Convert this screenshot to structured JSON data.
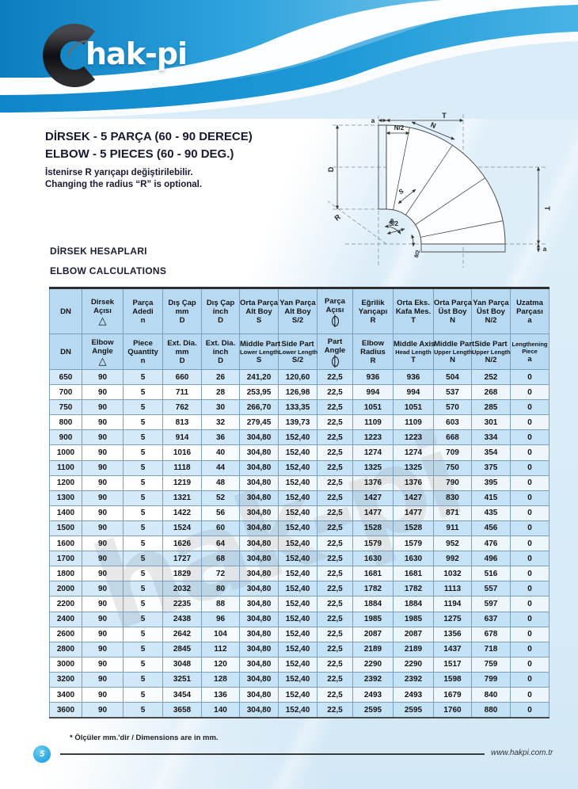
{
  "brand": {
    "logo_text": "hak-pi",
    "watermark": "hak-pi",
    "website": "www.hakpi.com.tr",
    "page_number": "5"
  },
  "titles": {
    "title_tr": "DİRSEK - 5 PARÇA (60 - 90 DERECE)",
    "title_en": "ELBOW - 5 PIECES (60 - 90 DEG.)",
    "note_tr": "İstenirse R yarıçapı değiştirilebilir.",
    "note_en": "Changing the radius “R” is optional."
  },
  "section": {
    "heading_tr": "DİRSEK HESAPLARI",
    "heading_en": "ELBOW CALCULATIONS"
  },
  "diagram": {
    "labels": {
      "a_top": "a",
      "n_half": "N/2",
      "t_top": "T",
      "n": "N",
      "d": "D",
      "r": "R",
      "s": "S",
      "s_half": "S/2",
      "t_right": "T",
      "a_bottom": "a",
      "theta": "θ",
      "theta_half": "θ/2"
    }
  },
  "table": {
    "symbols": {
      "triangle": "△",
      "theta": "θ"
    },
    "columns": [
      {
        "id": "dn",
        "tr": [
          "DN"
        ],
        "en": [
          "DN"
        ]
      },
      {
        "id": "elbow-angle",
        "tr": [
          "Dirsek",
          "Açısı"
        ],
        "en": [
          "Elbow",
          "Angle"
        ],
        "symbol": "triangle"
      },
      {
        "id": "piece-quantity",
        "tr": [
          "Parça",
          "Adedi",
          "n"
        ],
        "en": [
          "Piece",
          "Quantity",
          "n"
        ]
      },
      {
        "id": "ext-dia-mm",
        "tr": [
          "Dış Çap",
          "mm",
          "D"
        ],
        "en": [
          "Ext. Dia.",
          "mm",
          "D"
        ]
      },
      {
        "id": "ext-dia-inch",
        "tr": [
          "Dış Çap",
          "inch",
          "D"
        ],
        "en": [
          "Ext. Dia.",
          "inch",
          "D"
        ]
      },
      {
        "id": "middle-part-lower-length",
        "tr": [
          "Orta Parça",
          "Alt Boy",
          "S"
        ],
        "en": [
          "Middle Part",
          "Lower Length",
          "S"
        ],
        "en_small": [
          1
        ]
      },
      {
        "id": "side-part-lower-length",
        "tr": [
          "Yan Parça",
          "Alt Boy",
          "S/2"
        ],
        "en": [
          "Side Part",
          "Lower Length",
          "S/2"
        ],
        "en_small": [
          1
        ]
      },
      {
        "id": "part-angle",
        "tr": [
          "Parça",
          "Açısı"
        ],
        "en": [
          "Part",
          "Angle"
        ],
        "symbol": "theta"
      },
      {
        "id": "elbow-radius",
        "tr": [
          "Eğrilik",
          "Yarıçapı",
          "R"
        ],
        "en": [
          "Elbow",
          "Radius",
          "R"
        ]
      },
      {
        "id": "middle-axis-head-length",
        "tr": [
          "Orta Eks.",
          "Kafa Mes.",
          "T"
        ],
        "en": [
          "Middle Axis",
          "Head Length",
          "T"
        ],
        "en_small": [
          1
        ]
      },
      {
        "id": "middle-part-upper-length",
        "tr": [
          "Orta Parça",
          "Üst Boy",
          "N"
        ],
        "en": [
          "Middle Part",
          "Upper Length",
          "N"
        ],
        "en_small": [
          1
        ]
      },
      {
        "id": "side-part-upper-length",
        "tr": [
          "Yan Parça",
          "Üst Boy",
          "N/2"
        ],
        "en": [
          "Side Part",
          "Upper Length",
          "N/2"
        ],
        "en_small": [
          1
        ]
      },
      {
        "id": "lengthening-piece",
        "tr": [
          "Uzatma",
          "Parçası",
          "a"
        ],
        "en": [
          "Lengthening",
          "Piece",
          "a"
        ],
        "en_small": [
          0,
          1
        ]
      }
    ],
    "rows": [
      [
        "650",
        "90",
        "5",
        "660",
        "26",
        "241,20",
        "120,60",
        "22,5",
        "936",
        "936",
        "504",
        "252",
        "0"
      ],
      [
        "700",
        "90",
        "5",
        "711",
        "28",
        "253,95",
        "126,98",
        "22,5",
        "994",
        "994",
        "537",
        "268",
        "0"
      ],
      [
        "750",
        "90",
        "5",
        "762",
        "30",
        "266,70",
        "133,35",
        "22,5",
        "1051",
        "1051",
        "570",
        "285",
        "0"
      ],
      [
        "800",
        "90",
        "5",
        "813",
        "32",
        "279,45",
        "139,73",
        "22,5",
        "1109",
        "1109",
        "603",
        "301",
        "0"
      ],
      [
        "900",
        "90",
        "5",
        "914",
        "36",
        "304,80",
        "152,40",
        "22,5",
        "1223",
        "1223",
        "668",
        "334",
        "0"
      ],
      [
        "1000",
        "90",
        "5",
        "1016",
        "40",
        "304,80",
        "152,40",
        "22,5",
        "1274",
        "1274",
        "709",
        "354",
        "0"
      ],
      [
        "1100",
        "90",
        "5",
        "1118",
        "44",
        "304,80",
        "152,40",
        "22,5",
        "1325",
        "1325",
        "750",
        "375",
        "0"
      ],
      [
        "1200",
        "90",
        "5",
        "1219",
        "48",
        "304,80",
        "152,40",
        "22,5",
        "1376",
        "1376",
        "790",
        "395",
        "0"
      ],
      [
        "1300",
        "90",
        "5",
        "1321",
        "52",
        "304,80",
        "152,40",
        "22,5",
        "1427",
        "1427",
        "830",
        "415",
        "0"
      ],
      [
        "1400",
        "90",
        "5",
        "1422",
        "56",
        "304,80",
        "152,40",
        "22,5",
        "1477",
        "1477",
        "871",
        "435",
        "0"
      ],
      [
        "1500",
        "90",
        "5",
        "1524",
        "60",
        "304,80",
        "152,40",
        "22,5",
        "1528",
        "1528",
        "911",
        "456",
        "0"
      ],
      [
        "1600",
        "90",
        "5",
        "1626",
        "64",
        "304,80",
        "152,40",
        "22,5",
        "1579",
        "1579",
        "952",
        "476",
        "0"
      ],
      [
        "1700",
        "90",
        "5",
        "1727",
        "68",
        "304,80",
        "152,40",
        "22,5",
        "1630",
        "1630",
        "992",
        "496",
        "0"
      ],
      [
        "1800",
        "90",
        "5",
        "1829",
        "72",
        "304,80",
        "152,40",
        "22,5",
        "1681",
        "1681",
        "1032",
        "516",
        "0"
      ],
      [
        "2000",
        "90",
        "5",
        "2032",
        "80",
        "304,80",
        "152,40",
        "22,5",
        "1782",
        "1782",
        "1113",
        "557",
        "0"
      ],
      [
        "2200",
        "90",
        "5",
        "2235",
        "88",
        "304,80",
        "152,40",
        "22,5",
        "1884",
        "1884",
        "1194",
        "597",
        "0"
      ],
      [
        "2400",
        "90",
        "5",
        "2438",
        "96",
        "304,80",
        "152,40",
        "22,5",
        "1985",
        "1985",
        "1275",
        "637",
        "0"
      ],
      [
        "2600",
        "90",
        "5",
        "2642",
        "104",
        "304,80",
        "152,40",
        "22,5",
        "2087",
        "2087",
        "1356",
        "678",
        "0"
      ],
      [
        "2800",
        "90",
        "5",
        "2845",
        "112",
        "304,80",
        "152,40",
        "22,5",
        "2189",
        "2189",
        "1437",
        "718",
        "0"
      ],
      [
        "3000",
        "90",
        "5",
        "3048",
        "120",
        "304,80",
        "152,40",
        "22,5",
        "2290",
        "2290",
        "1517",
        "759",
        "0"
      ],
      [
        "3200",
        "90",
        "5",
        "3251",
        "128",
        "304,80",
        "152,40",
        "22,5",
        "2392",
        "2392",
        "1598",
        "799",
        "0"
      ],
      [
        "3400",
        "90",
        "5",
        "3454",
        "136",
        "304,80",
        "152,40",
        "22,5",
        "2493",
        "2493",
        "1679",
        "840",
        "0"
      ],
      [
        "3600",
        "90",
        "5",
        "3658",
        "140",
        "304,80",
        "152,40",
        "22,5",
        "2595",
        "2595",
        "1760",
        "880",
        "0"
      ]
    ]
  },
  "footer": {
    "footnote": "* Ölçüler mm.'dir / Dimensions are in mm."
  },
  "colors": {
    "banner_blue": "#1489cc",
    "table_header_bg": "#b7d9f1",
    "row_blue": "#baddf5",
    "page_blue": "#d3e8f6",
    "badge_blue": "#29a8e0",
    "watermark_gray": "#9d9d9d"
  }
}
